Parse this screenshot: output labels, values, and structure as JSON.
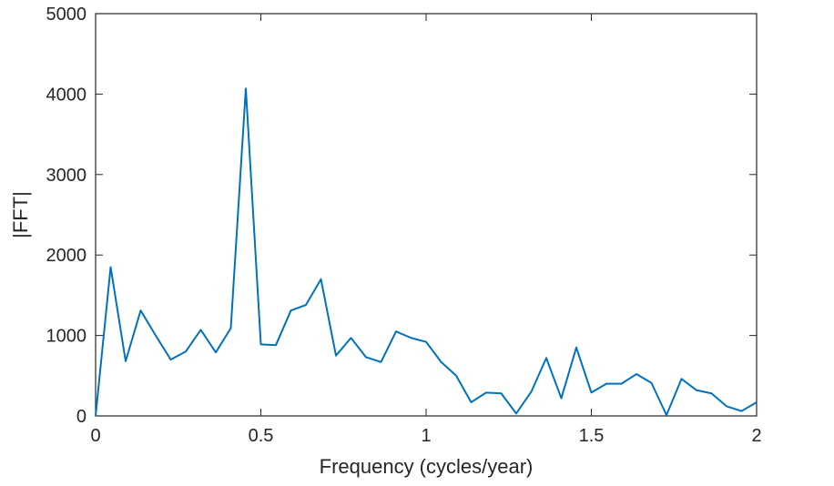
{
  "chart_data": {
    "type": "line",
    "title": "",
    "xlabel": "Frequency (cycles/year)",
    "ylabel": "|FFT|",
    "xlim": [
      0,
      2
    ],
    "ylim": [
      0,
      5000
    ],
    "xticks": [
      0,
      0.5,
      1,
      1.5,
      2
    ],
    "xtick_labels": [
      "0",
      "0.5",
      "1",
      "1.5",
      "2"
    ],
    "yticks": [
      0,
      1000,
      2000,
      3000,
      4000,
      5000
    ],
    "ytick_labels": [
      "0",
      "1000",
      "2000",
      "3000",
      "4000",
      "5000"
    ],
    "grid": false,
    "box": true,
    "series": [
      {
        "color": "#0072BD",
        "x": [
          0,
          0.0455,
          0.0909,
          0.1364,
          0.1818,
          0.2273,
          0.2727,
          0.3182,
          0.3636,
          0.4091,
          0.4545,
          0.5,
          0.5455,
          0.5909,
          0.6364,
          0.6818,
          0.7273,
          0.7727,
          0.8182,
          0.8636,
          0.9091,
          0.9545,
          1.0,
          1.0455,
          1.0909,
          1.1364,
          1.1818,
          1.2273,
          1.2727,
          1.3182,
          1.3636,
          1.4091,
          1.4545,
          1.5,
          1.5455,
          1.5909,
          1.6364,
          1.6818,
          1.7273,
          1.7727,
          1.8182,
          1.8636,
          1.9091,
          1.9545,
          2.0
        ],
        "y": [
          0,
          1850,
          680,
          1310,
          1000,
          700,
          800,
          1070,
          790,
          1090,
          4070,
          890,
          880,
          1310,
          1380,
          1700,
          750,
          970,
          730,
          670,
          1050,
          970,
          920,
          670,
          500,
          170,
          290,
          280,
          30,
          300,
          720,
          220,
          850,
          290,
          400,
          400,
          520,
          410,
          10,
          460,
          320,
          280,
          120,
          60,
          170
        ]
      }
    ]
  }
}
